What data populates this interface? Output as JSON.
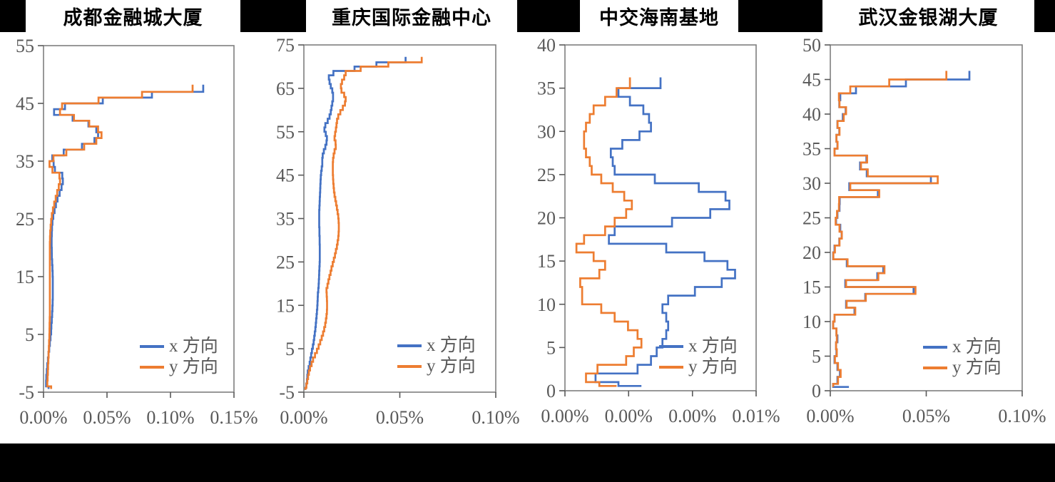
{
  "figure_colors": {
    "series_x_blue": "#4472C4",
    "series_y_orange": "#ED7D31",
    "axis_text_gray": "#595959",
    "plot_border_gray": "#7F7F7F",
    "band_black": "#000000",
    "background_white": "#ffffff"
  },
  "chart_data": [
    {
      "type": "line",
      "subtype": "step-profile",
      "title": "成都金融城大厦",
      "x_axis": {
        "min": 0,
        "max": 0.15,
        "unit": "%",
        "tick_values": [
          0,
          0.05,
          0.1,
          0.15
        ],
        "tick_labels": [
          "0.00%",
          "0.05%",
          "0.10%",
          "0.15%"
        ]
      },
      "y_axis": {
        "min": -5,
        "max": 55,
        "tick_values": [
          -5,
          5,
          15,
          25,
          35,
          45,
          55
        ],
        "tick_labels": [
          "-5",
          "5",
          "15",
          "25",
          "35",
          "45",
          "55"
        ]
      },
      "floor_start": -4,
      "floor_end": 48,
      "legend_position": "lower-right",
      "series": [
        {
          "name": "x 方向",
          "color": "#4472C4",
          "ground": null,
          "values": [
            0.004,
            0.002,
            0.0022,
            0.0026,
            0.003,
            0.0035,
            0.004,
            0.0045,
            0.005,
            0.0055,
            0.006,
            0.0062,
            0.0065,
            0.0068,
            0.007,
            0.0072,
            0.0073,
            0.0073,
            0.0073,
            0.0073,
            0.0072,
            0.007,
            0.0068,
            0.0066,
            0.0065,
            0.0064,
            0.0064,
            0.0065,
            0.0067,
            0.007,
            0.0077,
            0.0087,
            0.0098,
            0.011,
            0.0127,
            0.0142,
            0.0152,
            0.0148,
            0.009,
            0.008,
            0.0069,
            0.0159,
            0.0303,
            0.0401,
            0.043,
            0.0416,
            0.0354,
            0.0229,
            0.0083,
            0.0169,
            0.0467,
            0.0854,
            0.1258
          ]
        },
        {
          "name": "y 方向",
          "color": "#ED7D31",
          "ground": null,
          "values": [
            0.006,
            0.003,
            0.0032,
            0.0034,
            0.0036,
            0.0038,
            0.004,
            0.0042,
            0.0044,
            0.0046,
            0.0047,
            0.0048,
            0.0049,
            0.005,
            0.005,
            0.005,
            0.005,
            0.005,
            0.005,
            0.005,
            0.005,
            0.005,
            0.005,
            0.005,
            0.005,
            0.005,
            0.0051,
            0.0053,
            0.0056,
            0.006,
            0.0066,
            0.0074,
            0.0084,
            0.0096,
            0.0108,
            0.012,
            0.013,
            0.0125,
            0.007,
            0.0047,
            0.0078,
            0.018,
            0.032,
            0.0416,
            0.0457,
            0.043,
            0.036,
            0.024,
            0.013,
            0.0146,
            0.0433,
            0.0776,
            0.1174
          ]
        }
      ]
    },
    {
      "type": "line",
      "subtype": "step-profile",
      "title": "重庆国际金融中心",
      "x_axis": {
        "min": 0,
        "max": 0.1,
        "unit": "%",
        "tick_values": [
          0,
          0.05,
          0.1
        ],
        "tick_labels": [
          "0.00%",
          "0.05%",
          "0.10%"
        ]
      },
      "y_axis": {
        "min": -5,
        "max": 75,
        "tick_values": [
          -5,
          5,
          15,
          25,
          35,
          45,
          55,
          65,
          75
        ],
        "tick_labels": [
          "-5",
          "5",
          "15",
          "25",
          "35",
          "45",
          "55",
          "65",
          "75"
        ]
      },
      "floor_start": -4,
      "floor_end": 72,
      "legend_position": "lower-right",
      "series": [
        {
          "name": "x 方向",
          "color": "#4472C4",
          "ground": null,
          "values": [
            0.0008,
            0.0012,
            0.0016,
            0.0018,
            0.002,
            0.0025,
            0.003,
            0.0034,
            0.0038,
            0.0042,
            0.0047,
            0.0051,
            0.0054,
            0.0057,
            0.006,
            0.0062,
            0.0064,
            0.0066,
            0.0068,
            0.007,
            0.0071,
            0.0072,
            0.0073,
            0.0075,
            0.0077,
            0.0078,
            0.0079,
            0.008,
            0.0081,
            0.0082,
            0.0083,
            0.0083,
            0.0083,
            0.0083,
            0.0082,
            0.0082,
            0.0081,
            0.0081,
            0.008,
            0.008,
            0.008,
            0.008,
            0.0081,
            0.0082,
            0.0083,
            0.0084,
            0.0085,
            0.0086,
            0.0087,
            0.0088,
            0.009,
            0.0093,
            0.0096,
            0.0096,
            0.0098,
            0.0104,
            0.0112,
            0.0118,
            0.012,
            0.0114,
            0.0107,
            0.0112,
            0.0124,
            0.0134,
            0.014,
            0.0144,
            0.0148,
            0.0152,
            0.0152,
            0.0148,
            0.014,
            0.0134,
            0.013,
            0.0154,
            0.0264,
            0.0378,
            0.053
          ]
        },
        {
          "name": "y 方向",
          "color": "#ED7D31",
          "ground": null,
          "values": [
            0.0008,
            0.0013,
            0.0018,
            0.0022,
            0.0026,
            0.0032,
            0.004,
            0.0048,
            0.0058,
            0.0068,
            0.0077,
            0.0085,
            0.0093,
            0.01,
            0.0106,
            0.0111,
            0.0115,
            0.0118,
            0.012,
            0.0121,
            0.0121,
            0.012,
            0.0119,
            0.0118,
            0.0123,
            0.0128,
            0.0133,
            0.0139,
            0.0144,
            0.015,
            0.0156,
            0.0162,
            0.0167,
            0.0172,
            0.0176,
            0.0179,
            0.0181,
            0.0182,
            0.0182,
            0.0181,
            0.0179,
            0.0176,
            0.0172,
            0.0168,
            0.0164,
            0.016,
            0.0157,
            0.0155,
            0.0153,
            0.0152,
            0.0151,
            0.0151,
            0.0151,
            0.0152,
            0.0155,
            0.016,
            0.0166,
            0.0165,
            0.016,
            0.0163,
            0.0167,
            0.017,
            0.0173,
            0.0179,
            0.019,
            0.0203,
            0.0214,
            0.0218,
            0.021,
            0.0196,
            0.0193,
            0.0199,
            0.021,
            0.0218,
            0.0296,
            0.044,
            0.0614
          ]
        }
      ]
    },
    {
      "type": "line",
      "subtype": "step-profile",
      "title": "中交海南基地",
      "x_axis": {
        "min": 0,
        "max": 0.01,
        "unit": "%",
        "tick_values": [
          0,
          0.00333,
          0.00667,
          0.01
        ],
        "tick_labels": [
          "0.00%",
          "0.00%",
          "0.00%",
          "0.01%"
        ]
      },
      "y_axis": {
        "min": 0,
        "max": 40,
        "tick_values": [
          0,
          5,
          10,
          15,
          20,
          25,
          30,
          35,
          40
        ],
        "tick_labels": [
          "0",
          "5",
          "10",
          "15",
          "20",
          "25",
          "30",
          "35",
          "40"
        ]
      },
      "floor_start": 1,
      "floor_end": 36,
      "legend_position": "lower-right",
      "series": [
        {
          "name": "x 方向",
          "color": "#4472C4",
          "ground": 0.004,
          "values": [
            0.0028,
            0.0016,
            0.0038,
            0.0045,
            0.0048,
            0.0051,
            0.0053,
            0.0054,
            0.0053,
            0.0051,
            0.0054,
            0.0068,
            0.0082,
            0.0089,
            0.0085,
            0.0073,
            0.0053,
            0.0023,
            0.0026,
            0.0056,
            0.0076,
            0.0086,
            0.0084,
            0.007,
            0.0047,
            0.0026,
            0.0025,
            0.0024,
            0.003,
            0.0039,
            0.0045,
            0.0044,
            0.0041,
            0.0034,
            0.0028,
            0.005
          ]
        },
        {
          "name": "y 方向",
          "color": "#ED7D31",
          "ground": 0.0027,
          "values": [
            0.0018,
            0.0011,
            0.0017,
            0.0032,
            0.0036,
            0.004,
            0.0038,
            0.0033,
            0.0026,
            0.0019,
            0.0009,
            0.0009,
            0.0008,
            0.0018,
            0.0021,
            0.0015,
            0.0006,
            0.001,
            0.0021,
            0.0026,
            0.0032,
            0.0035,
            0.0031,
            0.0025,
            0.0019,
            0.0014,
            0.0013,
            0.0011,
            0.001,
            0.001,
            0.0011,
            0.0013,
            0.0015,
            0.0021,
            0.0027,
            0.0034
          ]
        }
      ]
    },
    {
      "type": "line",
      "subtype": "step-profile",
      "title": "武汉金银湖大厦",
      "x_axis": {
        "min": 0,
        "max": 0.1,
        "unit": "%",
        "tick_values": [
          0,
          0.05,
          0.1
        ],
        "tick_labels": [
          "0.00%",
          "0.05%",
          "0.10%"
        ]
      },
      "y_axis": {
        "min": 0,
        "max": 50,
        "tick_values": [
          0,
          5,
          10,
          15,
          20,
          25,
          30,
          35,
          40,
          45,
          50
        ],
        "tick_labels": [
          "0",
          "5",
          "10",
          "15",
          "20",
          "25",
          "30",
          "35",
          "40",
          "45",
          "50"
        ]
      },
      "floor_start": 1,
      "floor_end": 46,
      "legend_position": "lower-right",
      "series": [
        {
          "name": "x 方向",
          "color": "#4472C4",
          "ground": 0.0097,
          "values": [
            0.0015,
            0.0037,
            0.005,
            0.0037,
            0.0022,
            0.0032,
            0.003,
            0.0037,
            0.0032,
            0.0015,
            0.0022,
            0.0126,
            0.0082,
            0.0182,
            0.0434,
            0.0078,
            0.0245,
            0.0276,
            0.0086,
            0.0015,
            0.0022,
            0.0047,
            0.0059,
            0.0052,
            0.003,
            0.0037,
            0.0048,
            0.0049,
            0.0248,
            0.0099,
            0.0524,
            0.019,
            0.0155,
            0.0188,
            0.0022,
            0.0037,
            0.0032,
            0.0047,
            0.0037,
            0.0065,
            0.008,
            0.0047,
            0.0052,
            0.0134,
            0.0394,
            0.0725
          ]
        },
        {
          "name": "y 方向",
          "color": "#ED7D31",
          "ground": null,
          "values": [
            0.0015,
            0.004,
            0.0054,
            0.004,
            0.0024,
            0.0034,
            0.003,
            0.0034,
            0.0032,
            0.0015,
            0.0022,
            0.013,
            0.0085,
            0.0185,
            0.0444,
            0.0082,
            0.025,
            0.0282,
            0.009,
            0.0016,
            0.0024,
            0.0048,
            0.006,
            0.0048,
            0.0028,
            0.0035,
            0.0045,
            0.0046,
            0.0255,
            0.0104,
            0.056,
            0.0195,
            0.016,
            0.0192,
            0.0022,
            0.0038,
            0.0032,
            0.0048,
            0.0038,
            0.007,
            0.0082,
            0.0048,
            0.0045,
            0.0104,
            0.0307,
            0.0605
          ]
        }
      ]
    }
  ]
}
